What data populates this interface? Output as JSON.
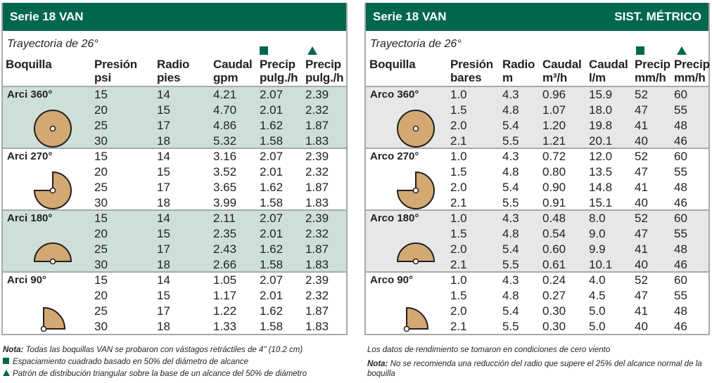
{
  "colors": {
    "header": "#00674f",
    "shade_left": "#cde0d8",
    "shade_right": "#e6e7e8",
    "nozzle_fill": "#d2a972"
  },
  "left": {
    "title": "Serie 18 VAN",
    "trajectory": "Trayectoria de 26°",
    "columns": [
      [
        "Boquilla",
        ""
      ],
      [
        "Presión",
        "psi"
      ],
      [
        "Radio",
        "pies"
      ],
      [
        "Caudal",
        "gpm"
      ],
      [
        "Precip",
        "pulg./h"
      ],
      [
        "Precip",
        "pulg./h"
      ]
    ],
    "markers": [
      "square",
      "triangle"
    ],
    "groups": [
      {
        "name": "Arci 360°",
        "arc": 360,
        "rows": [
          [
            "15",
            "14",
            "4.21",
            "2.07",
            "2.39"
          ],
          [
            "20",
            "15",
            "4.70",
            "2.01",
            "2.32"
          ],
          [
            "25",
            "17",
            "4.86",
            "1.62",
            "1.87"
          ],
          [
            "30",
            "18",
            "5.32",
            "1.58",
            "1.83"
          ]
        ]
      },
      {
        "name": "Arci 270°",
        "arc": 270,
        "rows": [
          [
            "15",
            "14",
            "3.16",
            "2.07",
            "2.39"
          ],
          [
            "20",
            "15",
            "3.52",
            "2.01",
            "2.32"
          ],
          [
            "25",
            "17",
            "3.65",
            "1.62",
            "1.87"
          ],
          [
            "30",
            "18",
            "3.99",
            "1.58",
            "1.83"
          ]
        ]
      },
      {
        "name": "Arci 180°",
        "arc": 180,
        "rows": [
          [
            "15",
            "14",
            "2.11",
            "2.07",
            "2.39"
          ],
          [
            "20",
            "15",
            "2.35",
            "2.01",
            "2.32"
          ],
          [
            "25",
            "17",
            "2.43",
            "1.62",
            "1.87"
          ],
          [
            "30",
            "18",
            "2.66",
            "1.58",
            "1.83"
          ]
        ]
      },
      {
        "name": "Arci 90°",
        "arc": 90,
        "rows": [
          [
            "15",
            "14",
            "1.05",
            "2.07",
            "2.39"
          ],
          [
            "20",
            "15",
            "1.17",
            "2.01",
            "2.32"
          ],
          [
            "25",
            "17",
            "1.22",
            "1.62",
            "1.87"
          ],
          [
            "30",
            "18",
            "1.33",
            "1.58",
            "1.83"
          ]
        ]
      }
    ],
    "notes": {
      "nota_label": "Nota:",
      "nota": " Todas las boquillas VAN se probaron con vástagos retráctiles de 4\" (10.2 cm)",
      "square": "Espaciamiento cuadrado basado en 50% del diámetro de alcance",
      "triangle": "Patrón de distribución triangular sobre la base de un alcance del 50% de diámetro"
    }
  },
  "right": {
    "title": "Serie 18 VAN",
    "title_right": "SIST. MÉTRICO",
    "trajectory": "Trayectoria de 26°",
    "columns": [
      [
        "Boquilla",
        ""
      ],
      [
        "Presión",
        "bares"
      ],
      [
        "Radio",
        "m"
      ],
      [
        "Caudal",
        "m³/h"
      ],
      [
        "Caudal",
        "l/m"
      ],
      [
        "Precip",
        "mm/h"
      ],
      [
        "Precip",
        "mm/h"
      ]
    ],
    "markers": [
      "square",
      "triangle"
    ],
    "groups": [
      {
        "name": "Arco 360°",
        "arc": 360,
        "rows": [
          [
            "1.0",
            "4.3",
            "0.96",
            "15.9",
            "52",
            "60"
          ],
          [
            "1.5",
            "4.8",
            "1.07",
            "18.0",
            "47",
            "55"
          ],
          [
            "2.0",
            "5.4",
            "1.20",
            "19.8",
            "41",
            "48"
          ],
          [
            "2.1",
            "5.5",
            "1.21",
            "20.1",
            "40",
            "46"
          ]
        ]
      },
      {
        "name": "Arco 270°",
        "arc": 270,
        "rows": [
          [
            "1.0",
            "4.3",
            "0.72",
            "12.0",
            "52",
            "60"
          ],
          [
            "1.5",
            "4.8",
            "0.80",
            "13.5",
            "47",
            "55"
          ],
          [
            "2.0",
            "5.4",
            "0.90",
            "14.8",
            "41",
            "48"
          ],
          [
            "2.1",
            "5.5",
            "0.91",
            "15.1",
            "40",
            "46"
          ]
        ]
      },
      {
        "name": "Arco 180°",
        "arc": 180,
        "rows": [
          [
            "1.0",
            "4.3",
            "0.48",
            "8.0",
            "52",
            "60"
          ],
          [
            "1.5",
            "4.8",
            "0.54",
            "9.0",
            "47",
            "55"
          ],
          [
            "2.0",
            "5.4",
            "0.60",
            "9.9",
            "41",
            "48"
          ],
          [
            "2.1",
            "5.5",
            "0.61",
            "10.1",
            "40",
            "46"
          ]
        ]
      },
      {
        "name": "Arco 90°",
        "arc": 90,
        "rows": [
          [
            "1.0",
            "4.3",
            "0.24",
            "4.0",
            "52",
            "60"
          ],
          [
            "1.5",
            "4.8",
            "0.27",
            "4.5",
            "47",
            "55"
          ],
          [
            "2.0",
            "5.4",
            "0.30",
            "5.0",
            "41",
            "48"
          ],
          [
            "2.1",
            "5.5",
            "0.30",
            "5.0",
            "40",
            "46"
          ]
        ]
      }
    ],
    "notes": {
      "line1": "Los datos de rendimiento se tomaron en condiciones de cero viento",
      "nota_label": "Nota:",
      "nota": " No se recomienda una reducción del radio que supere el 25% del alcance normal de la boquilla"
    }
  }
}
